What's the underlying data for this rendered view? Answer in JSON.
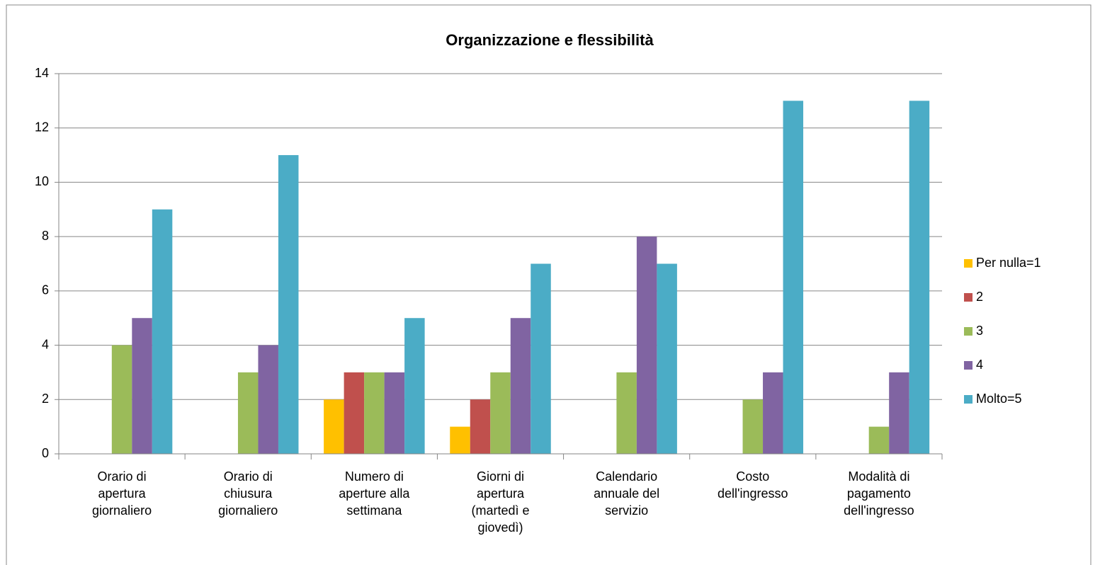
{
  "chart_data": {
    "type": "bar",
    "title": "Organizzazione e flessibilità",
    "categories": [
      "Orario di apertura giornaliero",
      "Orario di chiusura giornaliero",
      "Numero di aperture alla settimana",
      "Giorni di apertura (martedì e giovedì)",
      "Calendario annuale del servizio",
      "Costo dell'ingresso",
      "Modalità di pagamento dell'ingresso"
    ],
    "series": [
      {
        "name": "Per nulla=1",
        "color": "#ffc000",
        "values": [
          0,
          0,
          2,
          1,
          0,
          0,
          0
        ]
      },
      {
        "name": "2",
        "color": "#c0504d",
        "values": [
          0,
          0,
          3,
          2,
          0,
          0,
          0
        ]
      },
      {
        "name": "3",
        "color": "#9bbb59",
        "values": [
          4,
          3,
          3,
          3,
          3,
          2,
          1
        ]
      },
      {
        "name": "4",
        "color": "#8064a2",
        "values": [
          5,
          4,
          3,
          5,
          8,
          3,
          3
        ]
      },
      {
        "name": "Molto=5",
        "color": "#4bacc6",
        "values": [
          9,
          11,
          5,
          7,
          7,
          13,
          13
        ]
      }
    ],
    "ylim": [
      0,
      14
    ],
    "yticks": [
      0,
      2,
      4,
      6,
      8,
      10,
      12,
      14
    ],
    "grid": true,
    "legend": "right"
  }
}
